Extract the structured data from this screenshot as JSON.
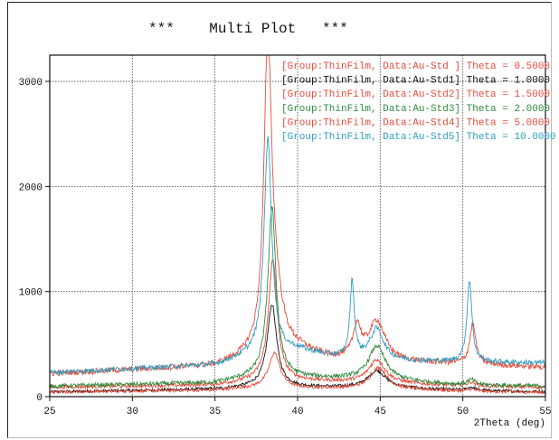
{
  "chart_data": {
    "type": "line",
    "title": "***    Multi Plot   ***",
    "xlabel": "2Theta (deg)",
    "ylabel": "",
    "xlim": [
      25,
      55
    ],
    "ylim": [
      0,
      3250
    ],
    "xticks": [
      25,
      30,
      35,
      40,
      45,
      50,
      55
    ],
    "yticks": [
      0,
      1000,
      2000,
      3000
    ],
    "grid": true,
    "legend_position": "top-right",
    "series": [
      {
        "name": "[Group:ThinFilm, Data:Au-Std ] Theta = 0.5000",
        "color": "#e84b3c",
        "baseline": [
          [
            25,
            220
          ],
          [
            35,
            290
          ],
          [
            37,
            370
          ],
          [
            40,
            440
          ],
          [
            42,
            360
          ],
          [
            45,
            330
          ],
          [
            50,
            310
          ],
          [
            55,
            280
          ]
        ],
        "peaks": [
          [
            38.2,
            2950,
            0.28
          ],
          [
            38.7,
            400,
            0.5
          ],
          [
            43.6,
            300,
            0.28
          ],
          [
            44.8,
            380,
            0.6
          ],
          [
            50.6,
            380,
            0.22
          ]
        ],
        "noise": 28
      },
      {
        "name": "[Group:ThinFilm, Data:Au-Std1] Theta = 1.0000",
        "color": "#111111",
        "baseline": [
          [
            25,
            45
          ],
          [
            35,
            70
          ],
          [
            38,
            100
          ],
          [
            40,
            90
          ],
          [
            45,
            85
          ],
          [
            50,
            60
          ],
          [
            55,
            45
          ]
        ],
        "peaks": [
          [
            38.45,
            780,
            0.34
          ],
          [
            44.8,
            160,
            0.65
          ],
          [
            50.5,
            30,
            0.3
          ]
        ],
        "noise": 14
      },
      {
        "name": "[Group:ThinFilm, Data:Au-Std2] Theta = 1.5000",
        "color": "#e84b3c",
        "baseline": [
          [
            25,
            90
          ],
          [
            35,
            110
          ],
          [
            38,
            160
          ],
          [
            40,
            150
          ],
          [
            45,
            130
          ],
          [
            50,
            100
          ],
          [
            55,
            90
          ]
        ],
        "peaks": [
          [
            38.5,
            1140,
            0.32
          ],
          [
            44.8,
            220,
            0.6
          ],
          [
            50.5,
            40,
            0.3
          ]
        ],
        "noise": 18
      },
      {
        "name": "[Group:ThinFilm, Data:Au-Std3] Theta = 2.0000",
        "color": "#2e8b3e",
        "baseline": [
          [
            25,
            100
          ],
          [
            35,
            130
          ],
          [
            38,
            200
          ],
          [
            40,
            180
          ],
          [
            45,
            160
          ],
          [
            50,
            110
          ],
          [
            55,
            100
          ]
        ],
        "peaks": [
          [
            38.45,
            1600,
            0.3
          ],
          [
            44.8,
            320,
            0.6
          ],
          [
            50.5,
            50,
            0.3
          ]
        ],
        "noise": 20
      },
      {
        "name": "[Group:ThinFilm, Data:Au-Std4] Theta = 5.0000",
        "color": "#e84b3c",
        "baseline": [
          [
            25,
            45
          ],
          [
            35,
            60
          ],
          [
            38,
            90
          ],
          [
            40,
            80
          ],
          [
            45,
            75
          ],
          [
            50,
            50
          ],
          [
            55,
            40
          ]
        ],
        "peaks": [
          [
            38.6,
            330,
            0.4
          ],
          [
            44.9,
            200,
            0.6
          ],
          [
            50.5,
            20,
            0.3
          ]
        ],
        "noise": 14
      },
      {
        "name": "[Group:ThinFilm, Data:Au-Std5] Theta = 10.0000",
        "color": "#2e9ec0",
        "baseline": [
          [
            25,
            230
          ],
          [
            35,
            300
          ],
          [
            37,
            380
          ],
          [
            40,
            440
          ],
          [
            42,
            380
          ],
          [
            45,
            340
          ],
          [
            50,
            330
          ],
          [
            55,
            320
          ]
        ],
        "peaks": [
          [
            38.2,
            2050,
            0.28
          ],
          [
            43.3,
            720,
            0.16
          ],
          [
            44.8,
            300,
            0.5
          ],
          [
            50.4,
            780,
            0.18
          ]
        ],
        "noise": 24
      }
    ]
  }
}
